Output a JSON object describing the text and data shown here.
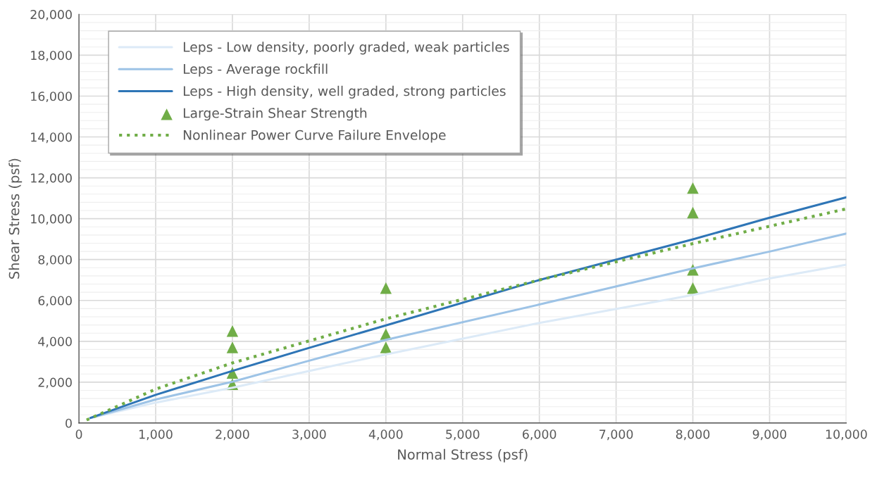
{
  "chart_data": {
    "type": "line",
    "xlabel": "Normal Stress (psf)",
    "ylabel": "Shear Stress (psf)",
    "xlim": [
      0,
      10000
    ],
    "ylim": [
      0,
      20000
    ],
    "xticks": [
      0,
      {
        "value": 1000,
        "label": "1,000"
      },
      {
        "value": 2000,
        "label": "2,000"
      },
      {
        "value": 3000,
        "label": "3,000"
      },
      {
        "value": 4000,
        "label": "4,000"
      },
      {
        "value": 5000,
        "label": "5,000"
      },
      {
        "value": 6000,
        "label": "6,000"
      },
      {
        "value": 7000,
        "label": "7,000"
      },
      {
        "value": 8000,
        "label": "8,000"
      },
      {
        "value": 9000,
        "label": "9,000"
      },
      {
        "value": 10000,
        "label": "10,000"
      }
    ],
    "yticks": [
      0,
      {
        "value": 2000,
        "label": "2,000"
      },
      {
        "value": 4000,
        "label": "4,000"
      },
      {
        "value": 6000,
        "label": "6,000"
      },
      {
        "value": 8000,
        "label": "8,000"
      },
      {
        "value": 10000,
        "label": "10,000"
      },
      {
        "value": 12000,
        "label": "12,000"
      },
      {
        "value": 14000,
        "label": "14,000"
      },
      {
        "value": 16000,
        "label": "16,000"
      },
      {
        "value": 18000,
        "label": "18,000"
      },
      {
        "value": 20000,
        "label": "20,000"
      }
    ],
    "grid": true,
    "legend": "top left",
    "series": [
      {
        "name": "Leps - Low density, poorly graded, weak particles",
        "color": "#dceaf7",
        "line_style": "solid",
        "x": [
          150,
          1000,
          2000,
          3000,
          4000,
          6000,
          8000,
          9000,
          10000
        ],
        "values": [
          250,
          1000,
          1730,
          2550,
          3360,
          4900,
          6270,
          7080,
          7750
        ]
      },
      {
        "name": "Leps - Average rockfill",
        "color": "#9dc3e6",
        "line_style": "solid",
        "x": [
          150,
          1000,
          2000,
          3000,
          4000,
          6000,
          8000,
          9000,
          10000
        ],
        "values": [
          250,
          1150,
          2020,
          3050,
          4070,
          5800,
          7570,
          8390,
          9270
        ]
      },
      {
        "name": "Leps - High density, well graded, strong particles",
        "color": "#2e75b6",
        "line_style": "solid",
        "x": [
          150,
          1000,
          2000,
          3000,
          4000,
          6000,
          8000,
          9000,
          10000
        ],
        "values": [
          250,
          1380,
          2550,
          3680,
          4780,
          7000,
          8990,
          10050,
          11050
        ]
      },
      {
        "name": "Large-Strain Shear Strength",
        "type": "scatter",
        "color": "#70ad47",
        "marker": "triangle",
        "x": [
          2000,
          2000,
          2000,
          2000,
          4000,
          4000,
          4000,
          8000,
          8000,
          8000,
          8000
        ],
        "values": [
          4500,
          3700,
          2450,
          1900,
          6600,
          4350,
          3700,
          11500,
          10300,
          7500,
          6600
        ]
      },
      {
        "name": "Nonlinear Power Curve Failure Envelope",
        "color": "#70ad47",
        "line_style": "dotted",
        "x": [
          100,
          1000,
          2000,
          4000,
          6000,
          8000,
          9000,
          10000
        ],
        "values": [
          150,
          1660,
          2940,
          5100,
          7000,
          8780,
          9630,
          10480
        ]
      }
    ]
  }
}
